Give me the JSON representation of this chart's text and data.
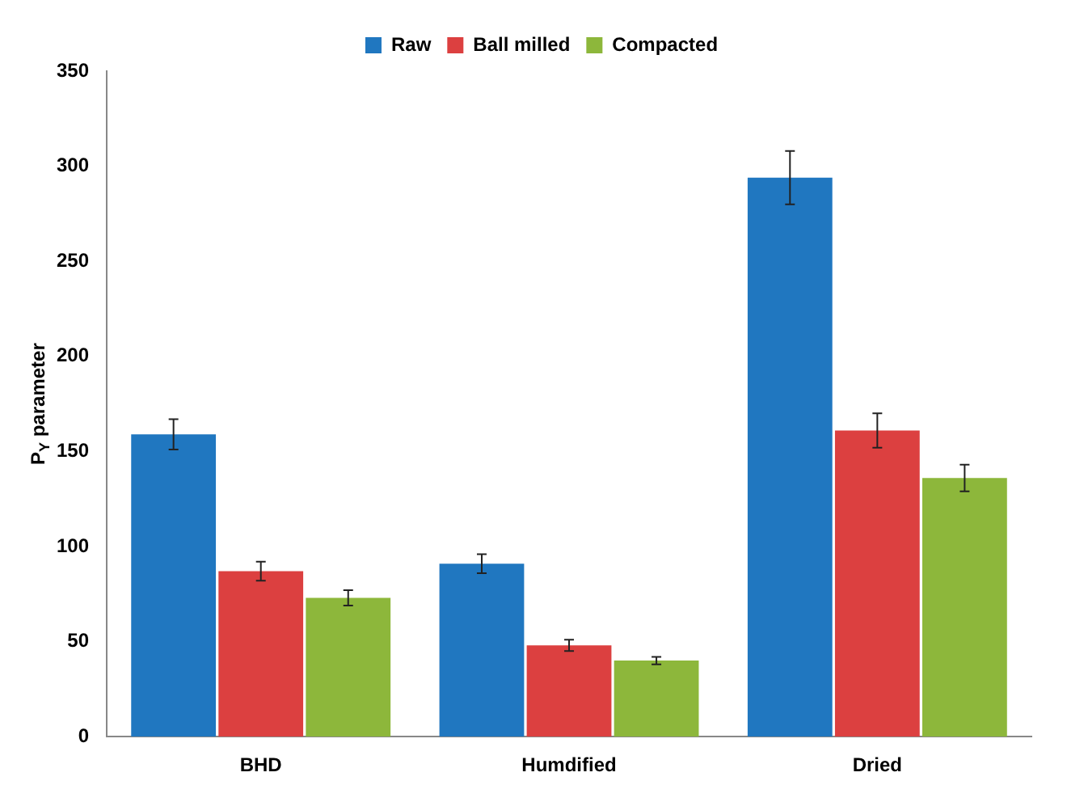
{
  "chart_data": {
    "type": "bar",
    "ylabel": "P$_{Y}$ parameter",
    "categories": [
      "BHD",
      "Humdified",
      "Dried"
    ],
    "series": [
      {
        "name": "Raw",
        "color": "#2077c0",
        "values": [
          159,
          91,
          294
        ],
        "errors": [
          8,
          5,
          14
        ]
      },
      {
        "name": "Ball milled",
        "color": "#dc4040",
        "values": [
          87,
          48,
          161
        ],
        "errors": [
          5,
          3,
          9
        ]
      },
      {
        "name": "Compacted",
        "color": "#8db73b",
        "values": [
          73,
          40,
          136
        ],
        "errors": [
          4,
          2,
          7
        ]
      }
    ],
    "ylim": [
      0,
      350
    ],
    "yticks": [
      0,
      50,
      100,
      150,
      200,
      250,
      300,
      350
    ],
    "grid": false,
    "legend": "top"
  }
}
